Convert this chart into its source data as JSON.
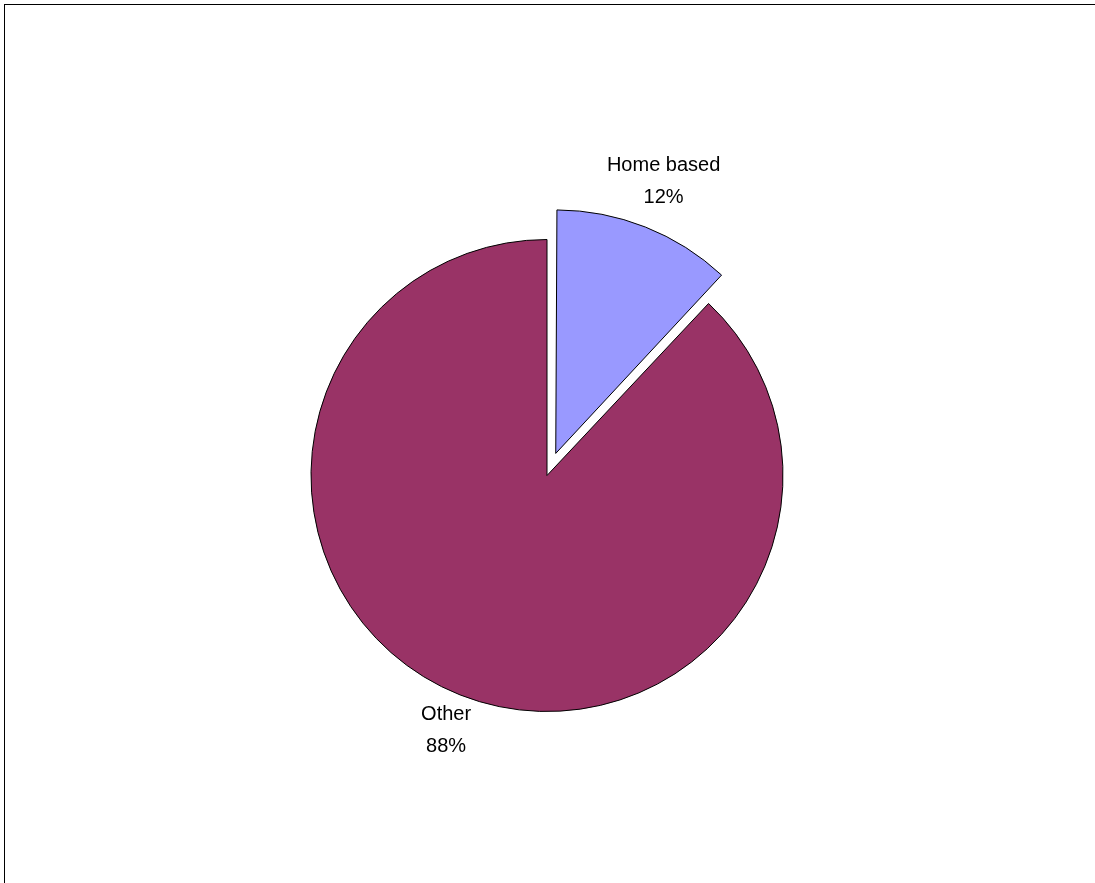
{
  "chart_data": {
    "type": "pie",
    "categories": [
      "Home based",
      "Other"
    ],
    "values": [
      12,
      88
    ],
    "colors": [
      "#9999ff",
      "#993366"
    ],
    "value_labels": [
      "12%",
      "88%"
    ],
    "legend": false
  }
}
